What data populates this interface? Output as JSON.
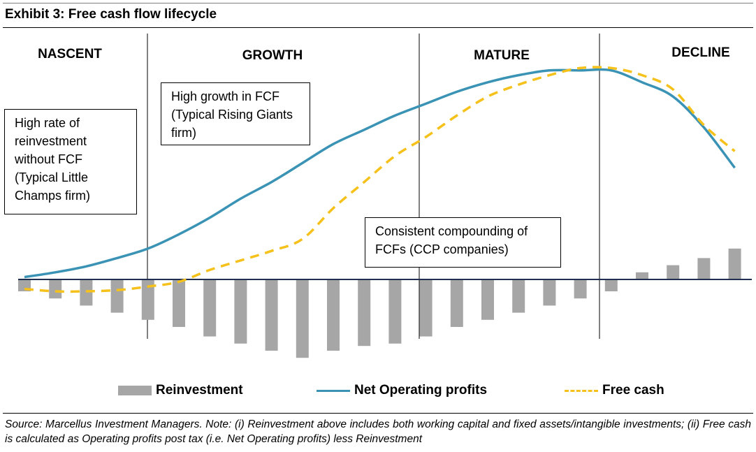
{
  "header": {
    "title": "Exhibit 3: Free cash flow lifecycle"
  },
  "footer": {
    "source": "Source: Marcellus Investment Managers. Note: (i) Reinvestment above includes both working capital and fixed assets/intangible investments; (ii) Free cash is calculated as Operating profits post tax (i.e. Net Operating profits) less Reinvestment"
  },
  "chart_data": {
    "type": "bar+line",
    "title": "Exhibit 3: Free cash flow lifecycle",
    "x": [
      1,
      2,
      3,
      4,
      5,
      6,
      7,
      8,
      9,
      10,
      11,
      12,
      13,
      14,
      15,
      16,
      17,
      18,
      19,
      20,
      21,
      22,
      23,
      24
    ],
    "phases": [
      "NASCENT",
      "GROWTH",
      "MATURE",
      "DECLINE"
    ],
    "annotations": [
      "High rate of reinvestment without FCF (Typical Little Champs firm)",
      "High growth in FCF (Typical Rising Giants firm)",
      "Consistent compounding of FCFs (CCP companies)"
    ],
    "series": [
      {
        "name": "Reinvestment",
        "type": "bar",
        "color": "#a6a6a6",
        "values": [
          -5,
          -8,
          -11,
          -14,
          -17,
          -20,
          -24,
          -27,
          -30,
          -33,
          -30,
          -28,
          -27,
          -24,
          -20,
          -17,
          -14,
          -11,
          -8,
          -5,
          3,
          6,
          9,
          13
        ]
      },
      {
        "name": "Net Operating profits",
        "type": "line",
        "color": "#3a93b5",
        "values": [
          1,
          3,
          5.5,
          9,
          13,
          19,
          26,
          34,
          41,
          49,
          57,
          63,
          69,
          74,
          79,
          83,
          86,
          88,
          88,
          88,
          83,
          77,
          64,
          47
        ]
      },
      {
        "name": "Free cash",
        "type": "line",
        "color": "#f5c11a",
        "values": [
          -4,
          -5,
          -5,
          -4.5,
          -3,
          -1,
          4,
          8,
          12,
          17,
          30,
          41,
          52,
          60,
          69,
          77,
          82,
          86,
          89,
          89,
          86,
          80,
          65,
          54
        ]
      }
    ]
  }
}
